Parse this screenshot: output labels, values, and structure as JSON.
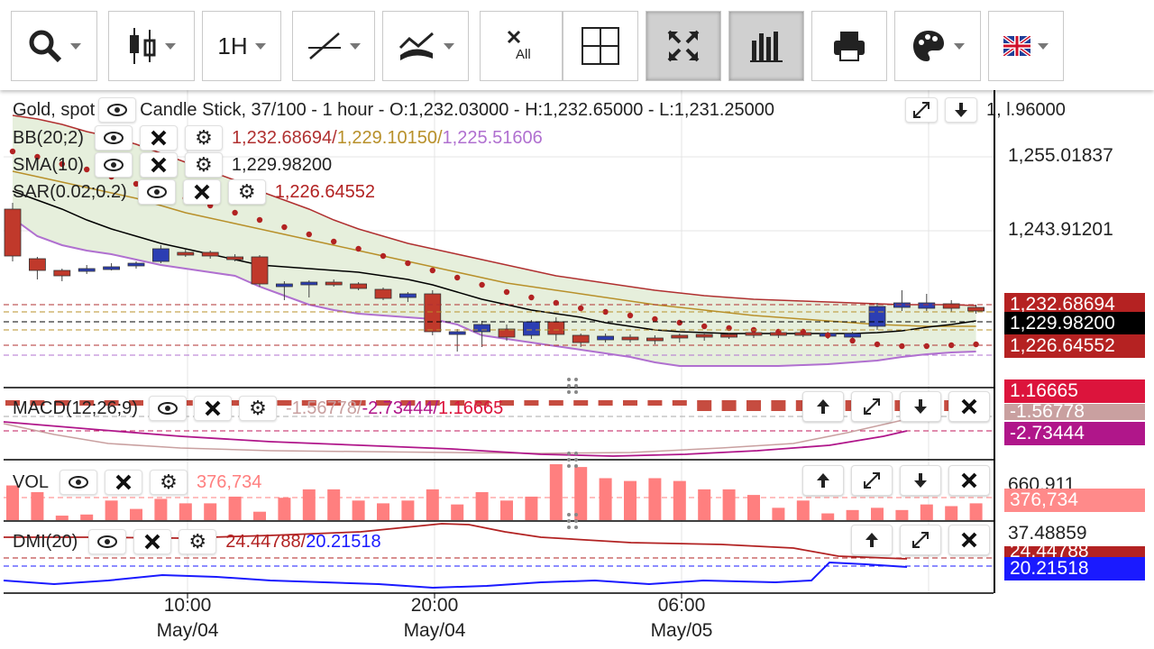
{
  "toolbar": {
    "timeframe": "1H",
    "deselect_all_label": "All"
  },
  "main": {
    "symbol": "Gold, spot",
    "info": "Candle Stick, 37/100 - 1 hour - O:1,232.03000 - H:1,232.65000 - L:1,231.25000",
    "close_fragment": "1,   l.96000",
    "bb_label": "BB(20;2)",
    "bb_upper": "1,232.68694",
    "bb_mid": "1,229.10150",
    "bb_lower": "1,225.51606",
    "sma_label": "SMA(10)",
    "sma_value": "1,229.98200",
    "sar_label": "SAR(0.02;0.2)",
    "sar_value": "1,226.64552",
    "axis": [
      "1,255.01837",
      "1,243.91201"
    ],
    "tags": {
      "bb": "1,232.68694",
      "sma": "1,229.98200",
      "sar": "1,226.64552"
    }
  },
  "macd": {
    "label": "MACD(12;26;9)",
    "v1": "-1.56778/",
    "v2": "-2.73444/",
    "v3": "1.16665",
    "tags": [
      "1.16665",
      "-1.56778",
      "-2.73444"
    ]
  },
  "vol": {
    "label": "VOL",
    "value": "376,734",
    "axis": "660,911",
    "tag": "376,734",
    "bars": [
      0.62,
      0.5,
      0.08,
      0.1,
      0.35,
      0.2,
      0.38,
      0.3,
      0.3,
      0.42,
      0.15,
      0.4,
      0.55,
      0.55,
      0.35,
      0.3,
      0.35,
      0.55,
      0.28,
      0.5,
      0.35,
      0.42,
      1.0,
      0.95,
      0.75,
      0.7,
      0.75,
      0.7,
      0.55,
      0.55,
      0.45,
      0.22,
      0.35,
      0.12,
      0.18,
      0.22,
      0.18,
      0.28,
      0.25,
      0.3,
      0.32,
      0.5,
      0.4,
      0.6,
      0.48,
      0.52,
      0.4
    ]
  },
  "dmi": {
    "label": "DMI(20)",
    "v1": "24.44788/",
    "v2": "20.21518",
    "axis": "37.48859",
    "tags": [
      "24.44788",
      "20.21518"
    ]
  },
  "time_axis": [
    {
      "time": "10:00",
      "date": "May/04"
    },
    {
      "time": "20:00",
      "date": "May/04"
    },
    {
      "time": "06:00",
      "date": "May/05"
    }
  ],
  "colors": {
    "up": "#2c3eb3",
    "down": "#c0392b",
    "bb": "#b03030",
    "sma": "#000000",
    "sar": "#b22222",
    "vol": "#ff7f7f",
    "plus_di": "#b22222",
    "minus_di": "#1a1aff"
  }
}
